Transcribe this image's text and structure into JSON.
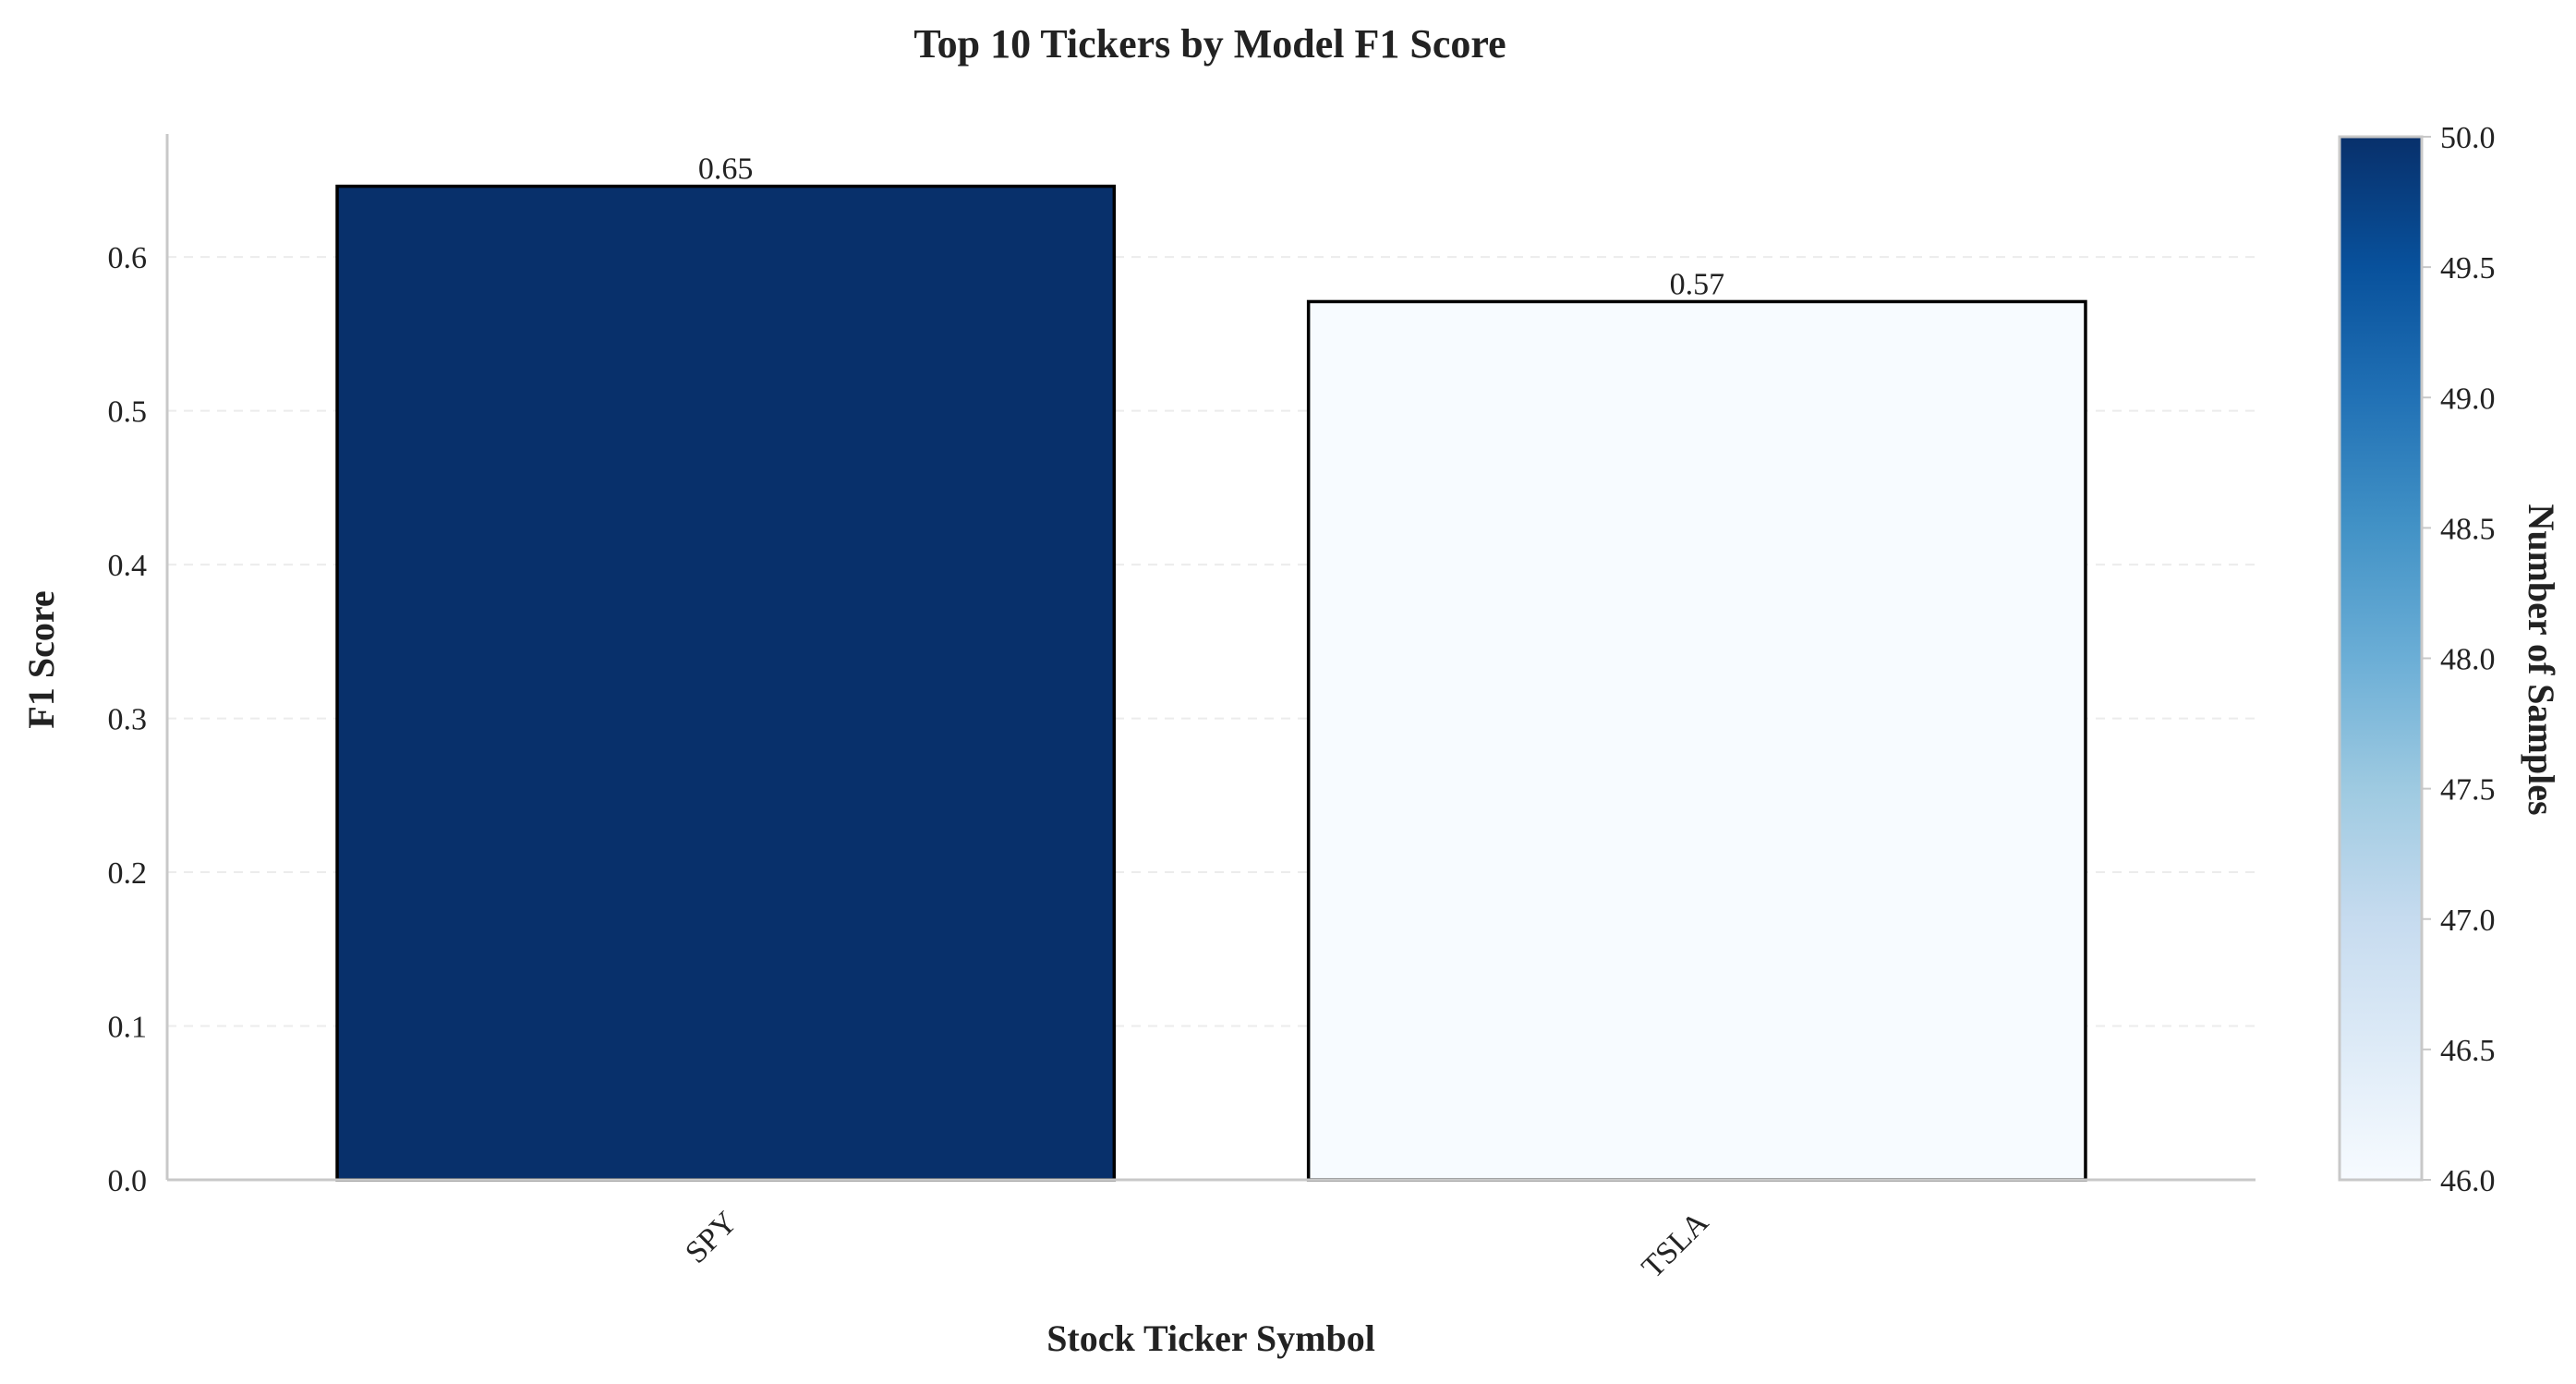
{
  "chart_data": {
    "type": "bar",
    "title": "Top 10 Tickers by Model F1 Score",
    "xlabel": "Stock Ticker Symbol",
    "ylabel": "F1 Score",
    "categories": [
      "SPY",
      "TSLA"
    ],
    "values": [
      0.646,
      0.571
    ],
    "data_labels": [
      "0.65",
      "0.57"
    ],
    "samples": [
      50.0,
      46.0
    ],
    "ylim": [
      0,
      0.68
    ],
    "yticks": [
      0.0,
      0.1,
      0.2,
      0.3,
      0.4,
      0.5,
      0.6
    ],
    "ytick_labels": [
      "0.0",
      "0.1",
      "0.2",
      "0.3",
      "0.4",
      "0.5",
      "0.6"
    ],
    "grid": "horizontal, dashed",
    "colorbar": {
      "label": "Number of Samples",
      "range": [
        46.0,
        50.0
      ],
      "colormap": "Blues",
      "ticks": [
        46.0,
        46.5,
        47.0,
        47.5,
        48.0,
        48.5,
        49.0,
        49.5,
        50.0
      ],
      "tick_labels": [
        "46.0",
        "46.5",
        "47.0",
        "47.5",
        "48.0",
        "48.5",
        "49.0",
        "49.5",
        "50.0"
      ],
      "colors": [
        "#f7fbff",
        "#deebf7",
        "#c6dbef",
        "#9ecae1",
        "#6baed6",
        "#4292c6",
        "#2171b5",
        "#08519c",
        "#08306b"
      ]
    }
  }
}
